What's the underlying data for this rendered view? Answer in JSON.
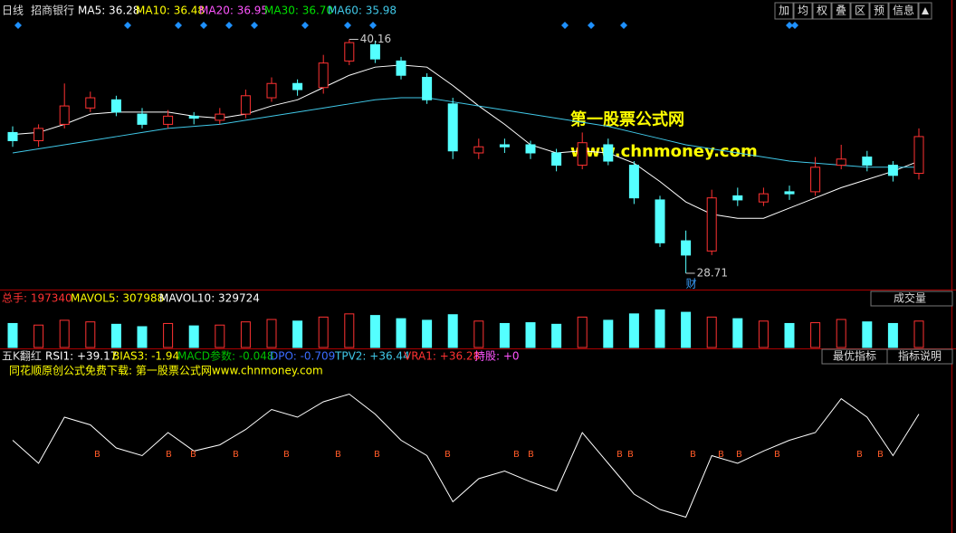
{
  "header": {
    "period": "日线",
    "stock": "招商银行",
    "ma_labels": [
      "MA5: 36.28",
      "MA10: 36.48",
      "MA20: 36.95",
      "MA30: 36.70",
      "MA60: 35.98"
    ]
  },
  "toolbar": [
    "加",
    "均",
    "权",
    "叠",
    "区",
    "预",
    "信息"
  ],
  "watermark": {
    "title": "第一股票公式网",
    "url": "www.chnmoney.com"
  },
  "chart_data": [
    {
      "type": "candlestick",
      "ylim": [
        28,
        41.2
      ],
      "open": [
        35.6,
        35.2,
        36.0,
        36.8,
        37.2,
        36.5,
        36.0,
        36.4,
        36.2,
        36.5,
        37.3,
        38.0,
        37.8,
        39.1,
        39.9,
        39.1,
        38.3,
        37.0,
        34.6,
        35.0,
        35.0,
        34.6,
        34.0,
        35.0,
        34.0,
        32.3,
        30.3,
        29.8,
        32.5,
        32.2,
        32.7,
        32.7,
        34.0,
        34.4,
        34.0,
        33.6
      ],
      "high": [
        35.9,
        36.0,
        38.0,
        37.6,
        37.4,
        36.8,
        36.7,
        36.6,
        36.8,
        37.7,
        38.3,
        38.2,
        39.4,
        40.16,
        40.1,
        39.3,
        38.5,
        37.3,
        35.3,
        35.3,
        35.2,
        34.8,
        35.6,
        35.3,
        34.2,
        32.5,
        30.8,
        32.8,
        32.9,
        32.9,
        33.0,
        34.4,
        35.0,
        34.7,
        34.2,
        35.8
      ],
      "low": [
        34.9,
        34.9,
        35.8,
        36.6,
        36.4,
        35.8,
        35.8,
        36.0,
        36.0,
        36.3,
        37.1,
        37.4,
        37.5,
        38.9,
        39.0,
        38.2,
        37.0,
        34.3,
        34.3,
        34.6,
        34.3,
        33.7,
        33.8,
        34.0,
        32.1,
        30.0,
        28.71,
        29.6,
        32.0,
        32.0,
        32.3,
        32.5,
        33.8,
        33.7,
        33.2,
        33.3
      ],
      "close": [
        35.2,
        35.8,
        36.9,
        37.3,
        36.6,
        36.0,
        36.4,
        36.3,
        36.5,
        37.4,
        38.0,
        37.7,
        39.0,
        40.0,
        39.2,
        38.4,
        37.2,
        34.7,
        34.9,
        34.9,
        34.6,
        34.0,
        35.1,
        34.2,
        32.4,
        30.2,
        29.6,
        32.4,
        32.3,
        32.6,
        32.6,
        33.9,
        34.3,
        34.0,
        33.5,
        35.4
      ],
      "lines": [
        {
          "name": "MA5",
          "color": "#ffffff",
          "values": [
            35.5,
            35.6,
            36.0,
            36.5,
            36.6,
            36.6,
            36.6,
            36.4,
            36.3,
            36.5,
            36.9,
            37.2,
            37.8,
            38.4,
            38.8,
            38.9,
            38.8,
            37.9,
            36.9,
            36.0,
            35.0,
            34.6,
            34.7,
            34.6,
            34.1,
            33.2,
            32.2,
            31.6,
            31.4,
            31.4,
            31.9,
            32.4,
            32.9,
            33.3,
            33.7,
            34.2
          ]
        },
        {
          "name": "MA60",
          "color": "#40c8e8",
          "values": [
            34.6,
            34.8,
            35.0,
            35.2,
            35.4,
            35.6,
            35.8,
            35.9,
            36.0,
            36.2,
            36.4,
            36.6,
            36.8,
            37.0,
            37.2,
            37.3,
            37.3,
            37.1,
            36.9,
            36.7,
            36.5,
            36.3,
            36.1,
            35.9,
            35.6,
            35.3,
            35.0,
            34.8,
            34.6,
            34.4,
            34.2,
            34.1,
            34.0,
            33.9,
            33.9,
            33.9
          ]
        }
      ],
      "high_label": "40.16",
      "low_label": "28.71",
      "note": "财"
    },
    {
      "type": "bar",
      "ylim": [
        0,
        520000
      ],
      "legend": [
        "总手: 197340",
        "MAVOL5: 307988",
        "MAVOL10: 329724"
      ],
      "button": "成交量",
      "values": [
        300000,
        280000,
        340000,
        320000,
        290000,
        260000,
        300000,
        270000,
        280000,
        320000,
        350000,
        330000,
        380000,
        420000,
        400000,
        360000,
        340000,
        410000,
        330000,
        300000,
        310000,
        290000,
        380000,
        340000,
        420000,
        470000,
        440000,
        380000,
        360000,
        330000,
        300000,
        310000,
        350000,
        320000,
        300000,
        330000
      ]
    },
    {
      "type": "line",
      "title": "五K翻红",
      "ylim": [
        0,
        100
      ],
      "legend": [
        "RSI1: +39.17",
        "BIAS3: -1.94",
        "MACD参数: -0.048",
        "DPO: -0.709",
        "TPV2: +36.44",
        "VRA1: +36.28",
        "持股: +0"
      ],
      "buttons": [
        "最优指标",
        "指标说明"
      ],
      "subtitle": "同花顺原创公式免费下载: 第一股票公式网www.chnmoney.com",
      "signal": "B",
      "values": [
        55,
        40,
        70,
        65,
        50,
        45,
        60,
        48,
        52,
        62,
        75,
        70,
        80,
        85,
        72,
        55,
        45,
        15,
        30,
        35,
        28,
        22,
        60,
        40,
        20,
        10,
        5,
        45,
        40,
        48,
        55,
        60,
        82,
        70,
        45,
        72
      ]
    }
  ]
}
